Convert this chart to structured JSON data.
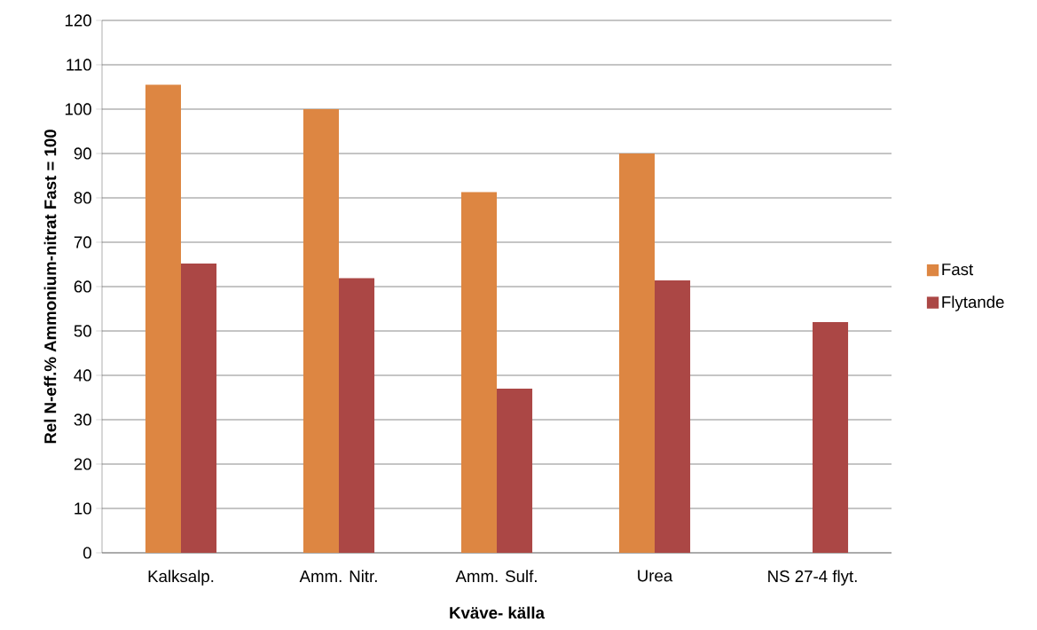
{
  "chart_data": {
    "type": "bar",
    "xlabel": "Kväve- källa",
    "ylabel": "Rel N-eff.%    Ammonium-nitrat Fast = 100",
    "categories": [
      "Kalksalp.",
      "Amm. Nitr.",
      "Amm. Sulf.",
      "Urea",
      "NS 27-4 flyt."
    ],
    "series": [
      {
        "name": "Fast",
        "color": "#dd8642",
        "values": [
          105.5,
          100,
          81.3,
          90,
          null
        ]
      },
      {
        "name": "Flytande",
        "color": "#ab4745",
        "values": [
          65.2,
          61.9,
          37,
          61.4,
          52
        ]
      }
    ],
    "ylim": [
      0,
      120
    ],
    "yticks": [
      0,
      10,
      20,
      30,
      40,
      50,
      60,
      70,
      80,
      90,
      100,
      110,
      120
    ],
    "grid": "y",
    "legend": "right"
  }
}
